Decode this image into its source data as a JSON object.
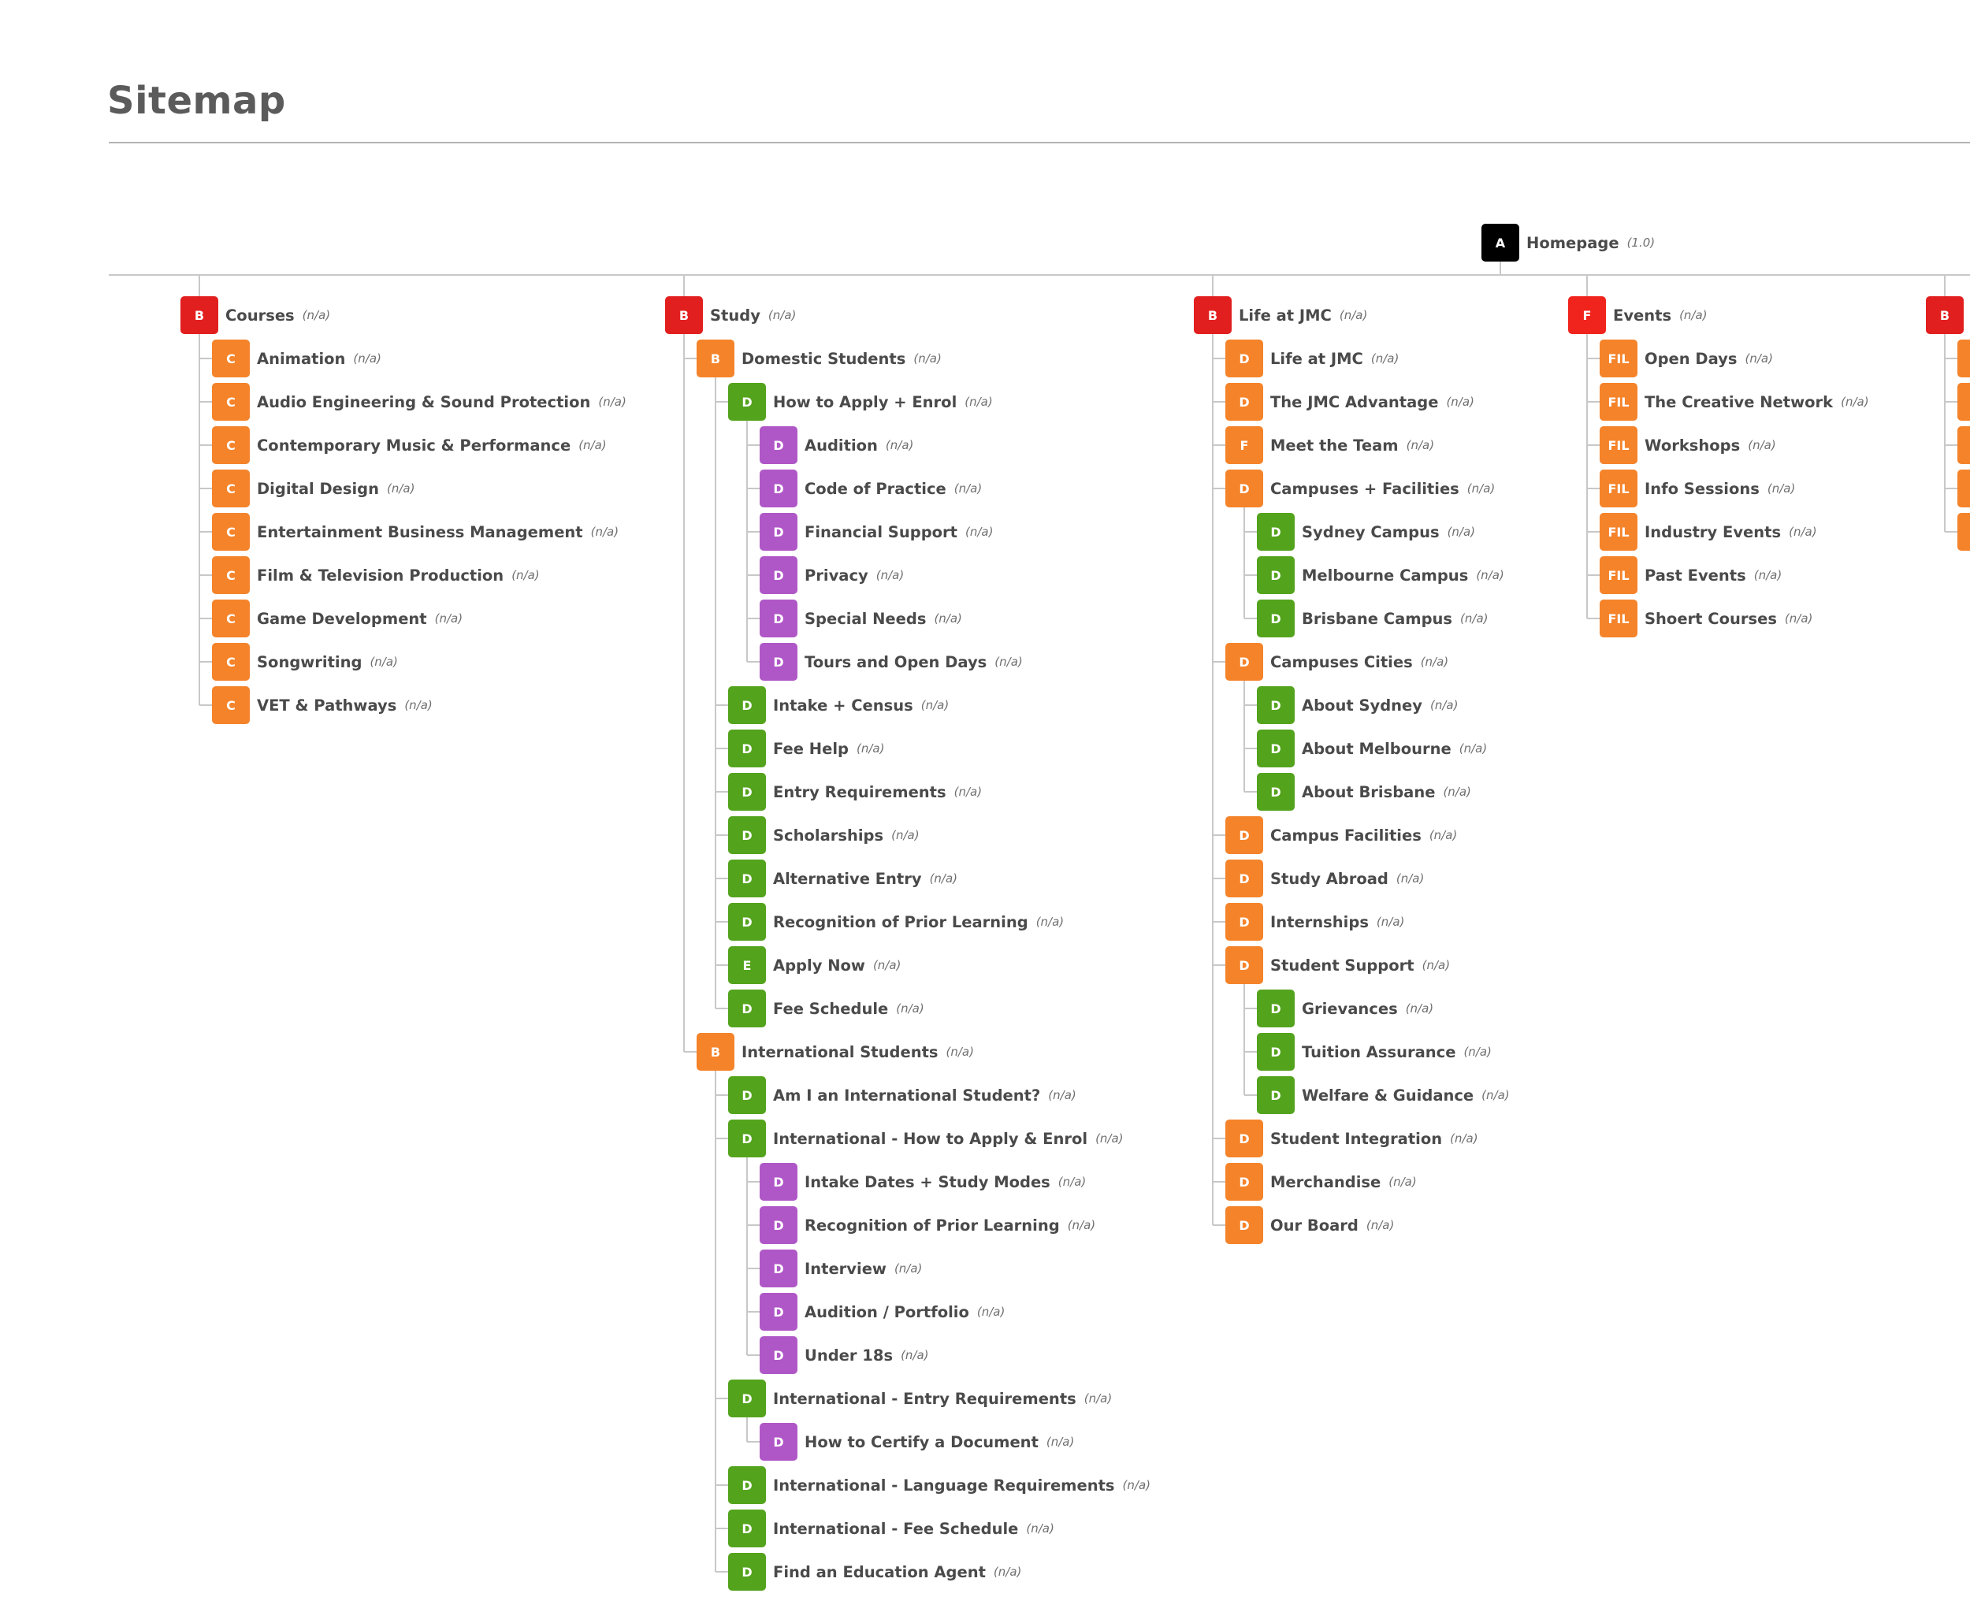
{
  "page": {
    "title": "Sitemap"
  },
  "colors": {
    "A": "#000000",
    "B": "#e21f1f",
    "F": "#f0241c",
    "C": "#f5832a",
    "D": "#f5832a",
    "FIL": "#f5832a",
    "D_green": "#53a31c",
    "E_green": "#53a31c",
    "D_purple": "#b057c7",
    "connector": "#c8c8c8"
  },
  "root": {
    "badge": "A",
    "label": "Homepage",
    "meta": "(1.0)"
  },
  "columns": [
    {
      "badge": "B",
      "label": "Courses",
      "meta": "(n/a)",
      "children": [
        {
          "badge": "C",
          "label": "Animation",
          "meta": "(n/a)"
        },
        {
          "badge": "C",
          "label": "Audio Engineering & Sound Protection",
          "meta": "(n/a)"
        },
        {
          "badge": "C",
          "label": "Contemporary Music & Performance",
          "meta": "(n/a)"
        },
        {
          "badge": "C",
          "label": "Digital Design",
          "meta": "(n/a)"
        },
        {
          "badge": "C",
          "label": "Entertainment Business Management",
          "meta": "(n/a)"
        },
        {
          "badge": "C",
          "label": "Film & Television Production",
          "meta": "(n/a)"
        },
        {
          "badge": "C",
          "label": "Game Development",
          "meta": "(n/a)"
        },
        {
          "badge": "C",
          "label": "Songwriting",
          "meta": "(n/a)"
        },
        {
          "badge": "C",
          "label": "VET & Pathways",
          "meta": "(n/a)"
        }
      ]
    },
    {
      "badge": "B",
      "label": "Study",
      "meta": "(n/a)",
      "children": [
        {
          "badge": "B",
          "color": "D",
          "label": "Domestic Students",
          "meta": "(n/a)",
          "children": [
            {
              "badge": "D",
              "color": "D_green",
              "label": "How to Apply + Enrol",
              "meta": "(n/a)",
              "children": [
                {
                  "badge": "D",
                  "color": "D_purple",
                  "label": "Audition",
                  "meta": "(n/a)"
                },
                {
                  "badge": "D",
                  "color": "D_purple",
                  "label": "Code of Practice",
                  "meta": "(n/a)"
                },
                {
                  "badge": "D",
                  "color": "D_purple",
                  "label": "Financial Support",
                  "meta": "(n/a)"
                },
                {
                  "badge": "D",
                  "color": "D_purple",
                  "label": "Privacy",
                  "meta": "(n/a)"
                },
                {
                  "badge": "D",
                  "color": "D_purple",
                  "label": "Special Needs",
                  "meta": "(n/a)"
                },
                {
                  "badge": "D",
                  "color": "D_purple",
                  "label": "Tours and Open Days",
                  "meta": "(n/a)"
                }
              ]
            },
            {
              "badge": "D",
              "color": "D_green",
              "label": "Intake + Census",
              "meta": "(n/a)"
            },
            {
              "badge": "D",
              "color": "D_green",
              "label": "Fee Help",
              "meta": "(n/a)"
            },
            {
              "badge": "D",
              "color": "D_green",
              "label": "Entry Requirements",
              "meta": "(n/a)"
            },
            {
              "badge": "D",
              "color": "D_green",
              "label": "Scholarships",
              "meta": "(n/a)"
            },
            {
              "badge": "D",
              "color": "D_green",
              "label": "Alternative Entry",
              "meta": "(n/a)"
            },
            {
              "badge": "D",
              "color": "D_green",
              "label": "Recognition of Prior Learning",
              "meta": "(n/a)"
            },
            {
              "badge": "E",
              "color": "E_green",
              "label": "Apply Now",
              "meta": "(n/a)"
            },
            {
              "badge": "D",
              "color": "D_green",
              "label": "Fee Schedule",
              "meta": "(n/a)"
            }
          ]
        },
        {
          "badge": "B",
          "color": "D",
          "label": "International Students",
          "meta": "(n/a)",
          "children": [
            {
              "badge": "D",
              "color": "D_green",
              "label": "Am I an International Student?",
              "meta": "(n/a)"
            },
            {
              "badge": "D",
              "color": "D_green",
              "label": "International - How to Apply & Enrol",
              "meta": "(n/a)",
              "children": [
                {
                  "badge": "D",
                  "color": "D_purple",
                  "label": "Intake Dates + Study Modes",
                  "meta": "(n/a)"
                },
                {
                  "badge": "D",
                  "color": "D_purple",
                  "label": "Recognition of Prior Learning",
                  "meta": "(n/a)"
                },
                {
                  "badge": "D",
                  "color": "D_purple",
                  "label": "Interview",
                  "meta": "(n/a)"
                },
                {
                  "badge": "D",
                  "color": "D_purple",
                  "label": "Audition / Portfolio",
                  "meta": "(n/a)"
                },
                {
                  "badge": "D",
                  "color": "D_purple",
                  "label": "Under 18s",
                  "meta": "(n/a)"
                }
              ]
            },
            {
              "badge": "D",
              "color": "D_green",
              "label": "International - Entry Requirements",
              "meta": "(n/a)",
              "children": [
                {
                  "badge": "D",
                  "color": "D_purple",
                  "label": "How to Certify a Document",
                  "meta": "(n/a)"
                }
              ]
            },
            {
              "badge": "D",
              "color": "D_green",
              "label": "International - Language Requirements",
              "meta": "(n/a)"
            },
            {
              "badge": "D",
              "color": "D_green",
              "label": "International - Fee Schedule",
              "meta": "(n/a)"
            },
            {
              "badge": "D",
              "color": "D_green",
              "label": "Find an Education Agent",
              "meta": "(n/a)"
            }
          ]
        }
      ]
    },
    {
      "badge": "B",
      "label": "Life at JMC",
      "meta": "(n/a)",
      "children": [
        {
          "badge": "D",
          "label": "Life at JMC",
          "meta": "(n/a)"
        },
        {
          "badge": "D",
          "label": "The JMC Advantage",
          "meta": "(n/a)"
        },
        {
          "badge": "F",
          "color": "D",
          "label": "Meet the Team",
          "meta": "(n/a)"
        },
        {
          "badge": "D",
          "label": "Campuses + Facilities",
          "meta": "(n/a)",
          "children": [
            {
              "badge": "D",
              "color": "D_green",
              "label": "Sydney Campus",
              "meta": "(n/a)"
            },
            {
              "badge": "D",
              "color": "D_green",
              "label": "Melbourne Campus",
              "meta": "(n/a)"
            },
            {
              "badge": "D",
              "color": "D_green",
              "label": "Brisbane Campus",
              "meta": "(n/a)"
            }
          ]
        },
        {
          "badge": "D",
          "label": "Campuses Cities",
          "meta": "(n/a)",
          "children": [
            {
              "badge": "D",
              "color": "D_green",
              "label": "About Sydney",
              "meta": "(n/a)"
            },
            {
              "badge": "D",
              "color": "D_green",
              "label": "About Melbourne",
              "meta": "(n/a)"
            },
            {
              "badge": "D",
              "color": "D_green",
              "label": "About Brisbane",
              "meta": "(n/a)"
            }
          ]
        },
        {
          "badge": "D",
          "label": "Campus Facilities",
          "meta": "(n/a)"
        },
        {
          "badge": "D",
          "label": "Study Abroad",
          "meta": "(n/a)"
        },
        {
          "badge": "D",
          "label": "Internships",
          "meta": "(n/a)"
        },
        {
          "badge": "D",
          "label": "Student Support",
          "meta": "(n/a)",
          "children": [
            {
              "badge": "D",
              "color": "D_green",
              "label": "Grievances",
              "meta": "(n/a)"
            },
            {
              "badge": "D",
              "color": "D_green",
              "label": "Tuition Assurance",
              "meta": "(n/a)"
            },
            {
              "badge": "D",
              "color": "D_green",
              "label": "Welfare & Guidance",
              "meta": "(n/a)"
            }
          ]
        },
        {
          "badge": "D",
          "label": "Student Integration",
          "meta": "(n/a)"
        },
        {
          "badge": "D",
          "label": "Merchandise",
          "meta": "(n/a)"
        },
        {
          "badge": "D",
          "label": "Our Board",
          "meta": "(n/a)"
        }
      ]
    },
    {
      "badge": "F",
      "label": "Events",
      "meta": "(n/a)",
      "children": [
        {
          "badge": "FIL",
          "label": "Open Days",
          "meta": "(n/a)"
        },
        {
          "badge": "FIL",
          "label": "The Creative Network",
          "meta": "(n/a)"
        },
        {
          "badge": "FIL",
          "label": "Workshops",
          "meta": "(n/a)"
        },
        {
          "badge": "FIL",
          "label": "Info Sessions",
          "meta": "(n/a)"
        },
        {
          "badge": "FIL",
          "label": "Industry Events",
          "meta": "(n/a)"
        },
        {
          "badge": "FIL",
          "label": "Past Events",
          "meta": "(n/a)"
        },
        {
          "badge": "FIL",
          "label": "Shoert Courses",
          "meta": "(n/a)"
        }
      ]
    },
    {
      "badge": "B",
      "label": "",
      "meta": "",
      "children": [
        {
          "badge": "",
          "color": "D",
          "label": "",
          "meta": ""
        },
        {
          "badge": "",
          "color": "D",
          "label": "",
          "meta": ""
        },
        {
          "badge": "",
          "color": "D",
          "label": "",
          "meta": ""
        },
        {
          "badge": "",
          "color": "D",
          "label": "",
          "meta": ""
        },
        {
          "badge": "",
          "color": "D",
          "label": "",
          "meta": ""
        }
      ]
    }
  ]
}
